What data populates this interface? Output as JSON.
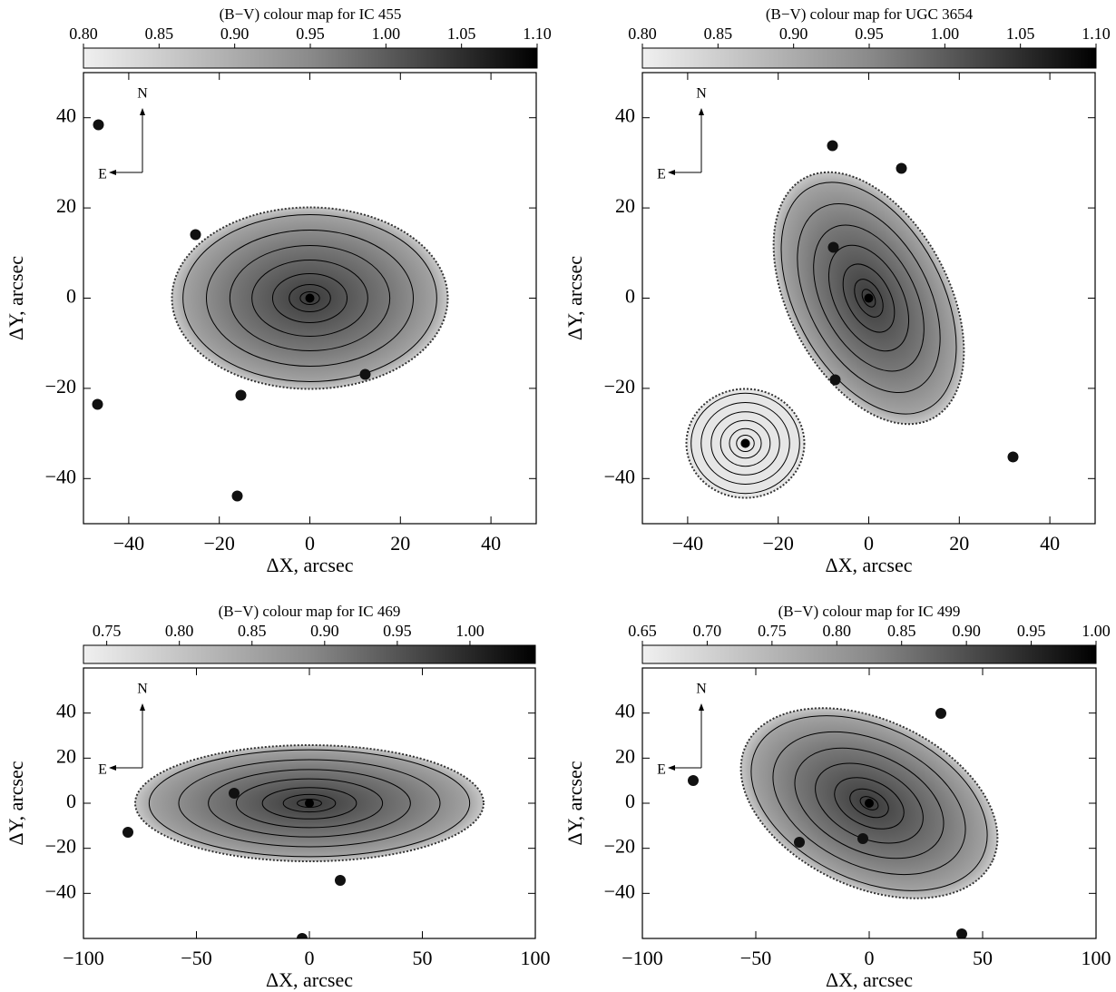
{
  "chart_data": [
    {
      "type": "colormap",
      "title": "(B−V) colour map for IC 455",
      "clim": [
        0.8,
        1.1
      ],
      "cticks": [
        {
          "value": 0.8,
          "label": "0.80"
        },
        {
          "value": 0.85,
          "label": "0.85"
        },
        {
          "value": 0.9,
          "label": "0.90"
        },
        {
          "value": 0.95,
          "label": "0.95"
        },
        {
          "value": 1.0,
          "label": "1.00"
        },
        {
          "value": 1.05,
          "label": "1.05"
        },
        {
          "value": 1.1,
          "label": "1.10"
        }
      ],
      "xlim": [
        -50,
        50
      ],
      "ylim": [
        -50,
        50
      ],
      "xticks": [
        {
          "value": -40,
          "label": "−40"
        },
        {
          "value": -20,
          "label": "−20"
        },
        0,
        20,
        40
      ],
      "yticks": [
        {
          "value": -40,
          "label": "−40"
        },
        {
          "value": -20,
          "label": "−20"
        },
        0,
        20,
        40
      ],
      "xlabel": "ΔX, arcsec",
      "ylabel": "ΔY, arcsec",
      "north": "N",
      "east": "E"
    },
    {
      "type": "colormap",
      "title": "(B−V) colour map for UGC 3654",
      "clim": [
        0.8,
        1.1
      ],
      "cticks": [
        {
          "value": 0.8,
          "label": "0.80"
        },
        {
          "value": 0.85,
          "label": "0.85"
        },
        {
          "value": 0.9,
          "label": "0.90"
        },
        {
          "value": 0.95,
          "label": "0.95"
        },
        {
          "value": 1.0,
          "label": "1.00"
        },
        {
          "value": 1.05,
          "label": "1.05"
        },
        {
          "value": 1.1,
          "label": "1.10"
        }
      ],
      "xlim": [
        -50,
        50
      ],
      "ylim": [
        -50,
        50
      ],
      "xticks": [
        {
          "value": -40,
          "label": "−40"
        },
        {
          "value": -20,
          "label": "−20"
        },
        0,
        20,
        40
      ],
      "yticks": [
        {
          "value": -40,
          "label": "−40"
        },
        {
          "value": -20,
          "label": "−20"
        },
        0,
        20,
        40
      ],
      "xlabel": "ΔX, arcsec",
      "ylabel": "ΔY, arcsec",
      "north": "N",
      "east": "E"
    },
    {
      "type": "colormap",
      "title": "(B−V) colour map for IC 469",
      "clim": [
        0.734,
        1.045
      ],
      "cticks": [
        {
          "value": 0.75,
          "label": "0.75"
        },
        {
          "value": 0.8,
          "label": "0.80"
        },
        {
          "value": 0.85,
          "label": "0.85"
        },
        {
          "value": 0.9,
          "label": "0.90"
        },
        {
          "value": 0.95,
          "label": "0.95"
        },
        {
          "value": 1.0,
          "label": "1.00"
        }
      ],
      "xlim": [
        -100,
        100
      ],
      "ylim": [
        -60,
        60
      ],
      "xticks": [
        {
          "value": -100,
          "label": "−100"
        },
        {
          "value": -50,
          "label": "−50"
        },
        0,
        50,
        100
      ],
      "yticks": [
        {
          "value": -40,
          "label": "−40"
        },
        {
          "value": -20,
          "label": "−20"
        },
        0,
        20,
        40
      ],
      "xlabel": "ΔX, arcsec",
      "ylabel": "ΔY, arcsec",
      "north": "N",
      "east": "E"
    },
    {
      "type": "colormap",
      "title": "(B−V) colour map for IC 499",
      "clim": [
        0.65,
        1.0
      ],
      "cticks": [
        {
          "value": 0.65,
          "label": "0.65"
        },
        {
          "value": 0.7,
          "label": "0.70"
        },
        {
          "value": 0.75,
          "label": "0.75"
        },
        {
          "value": 0.8,
          "label": "0.80"
        },
        {
          "value": 0.85,
          "label": "0.85"
        },
        {
          "value": 0.9,
          "label": "0.90"
        },
        {
          "value": 0.95,
          "label": "0.95"
        },
        {
          "value": 1.0,
          "label": "1.00"
        }
      ],
      "xlim": [
        -100,
        100
      ],
      "ylim": [
        -60,
        60
      ],
      "xticks": [
        {
          "value": -100,
          "label": "−100"
        },
        {
          "value": -50,
          "label": "−50"
        },
        0,
        50,
        100
      ],
      "yticks": [
        {
          "value": -40,
          "label": "−40"
        },
        {
          "value": -20,
          "label": "−20"
        },
        0,
        20,
        40
      ],
      "xlabel": "ΔX, arcsec",
      "ylabel": "ΔY, arcsec",
      "north": "N",
      "east": "E"
    }
  ]
}
